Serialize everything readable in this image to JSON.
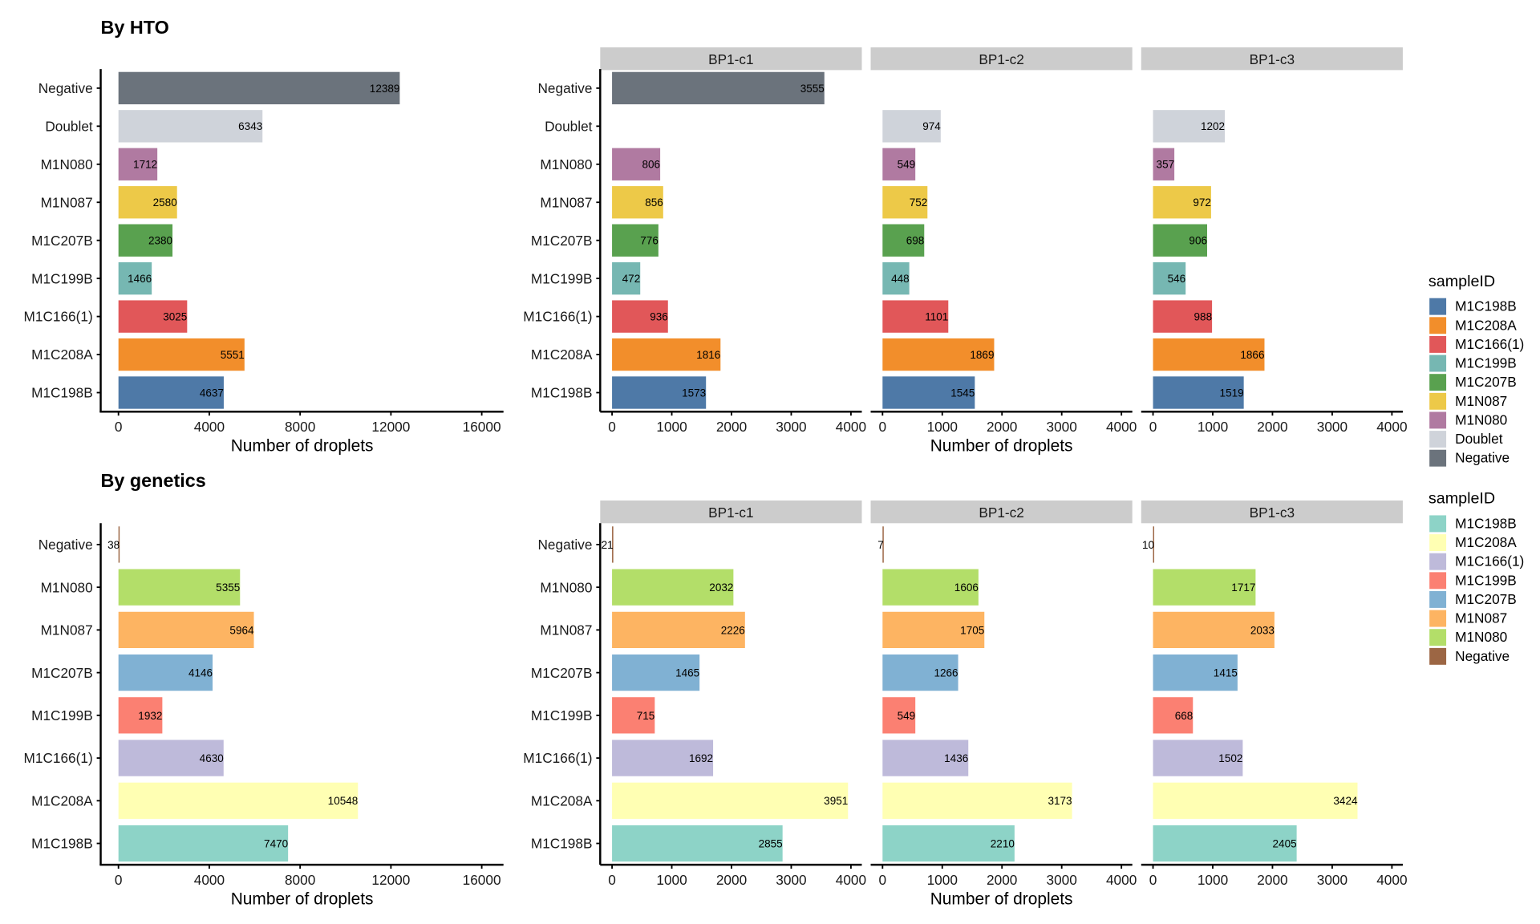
{
  "chart_data": [
    {
      "id": "hto",
      "type": "bar",
      "orientation": "horizontal",
      "title": "By HTO",
      "xlabel": "Number of droplets",
      "categories": [
        "Negative",
        "Doublet",
        "M1N080",
        "M1N087",
        "M1C207B",
        "M1C199B",
        "M1C166(1)",
        "M1C208A",
        "M1C198B"
      ],
      "overall": {
        "xlim": [
          0,
          16000
        ],
        "xticks": [
          0,
          4000,
          8000,
          12000,
          16000
        ],
        "values": [
          12389,
          6343,
          1712,
          2580,
          2380,
          1466,
          3025,
          5551,
          4637
        ]
      },
      "facets": {
        "xlim": [
          0,
          4000
        ],
        "xticks": [
          0,
          1000,
          2000,
          3000,
          4000
        ],
        "panels": [
          {
            "strip": "BP1-c1",
            "values": [
              3555,
              null,
              806,
              856,
              776,
              472,
              936,
              1816,
              1573
            ]
          },
          {
            "strip": "BP1-c2",
            "values": [
              null,
              974,
              549,
              752,
              698,
              448,
              1101,
              1869,
              1545
            ]
          },
          {
            "strip": "BP1-c3",
            "values": [
              null,
              1202,
              357,
              972,
              906,
              546,
              988,
              1866,
              1519
            ]
          }
        ]
      },
      "colors": {
        "Negative": "#6b737c",
        "Doublet": "#cfd3da",
        "M1N080": "#b07aa1",
        "M1N087": "#edc948",
        "M1C207B": "#59a14f",
        "M1C199B": "#76b7b2",
        "M1C166(1)": "#e15759",
        "M1C208A": "#f28e2b",
        "M1C198B": "#4e79a7"
      },
      "legend": {
        "title": "sampleID",
        "position": "right",
        "entries": [
          "M1C198B",
          "M1C208A",
          "M1C166(1)",
          "M1C199B",
          "M1C207B",
          "M1N087",
          "M1N080",
          "Doublet",
          "Negative"
        ]
      }
    },
    {
      "id": "genetics",
      "type": "bar",
      "orientation": "horizontal",
      "title": "By genetics",
      "xlabel": "Number of droplets",
      "categories": [
        "Negative",
        "M1N080",
        "M1N087",
        "M1C207B",
        "M1C199B",
        "M1C166(1)",
        "M1C208A",
        "M1C198B"
      ],
      "overall": {
        "xlim": [
          0,
          16000
        ],
        "xticks": [
          0,
          4000,
          8000,
          12000,
          16000
        ],
        "values": [
          38,
          5355,
          5964,
          4146,
          1932,
          4630,
          10548,
          7470
        ]
      },
      "facets": {
        "xlim": [
          0,
          4000
        ],
        "xticks": [
          0,
          1000,
          2000,
          3000,
          4000
        ],
        "panels": [
          {
            "strip": "BP1-c1",
            "values": [
              21,
              2032,
              2226,
              1465,
              715,
              1692,
              3951,
              2855
            ]
          },
          {
            "strip": "BP1-c2",
            "values": [
              7,
              1606,
              1705,
              1266,
              549,
              1436,
              3173,
              2210
            ]
          },
          {
            "strip": "BP1-c3",
            "values": [
              10,
              1717,
              2033,
              1415,
              668,
              1502,
              3424,
              2405
            ]
          }
        ]
      },
      "colors": {
        "Negative": "#9c6644",
        "M1N080": "#b3de69",
        "M1N087": "#fdb462",
        "M1C207B": "#80b1d3",
        "M1C199B": "#fb8072",
        "M1C166(1)": "#bebada",
        "M1C208A": "#ffffb3",
        "M1C198B": "#8dd3c7"
      },
      "legend": {
        "title": "sampleID",
        "position": "right",
        "entries": [
          "M1C198B",
          "M1C208A",
          "M1C166(1)",
          "M1C199B",
          "M1C207B",
          "M1N087",
          "M1N080",
          "Negative"
        ]
      }
    }
  ]
}
